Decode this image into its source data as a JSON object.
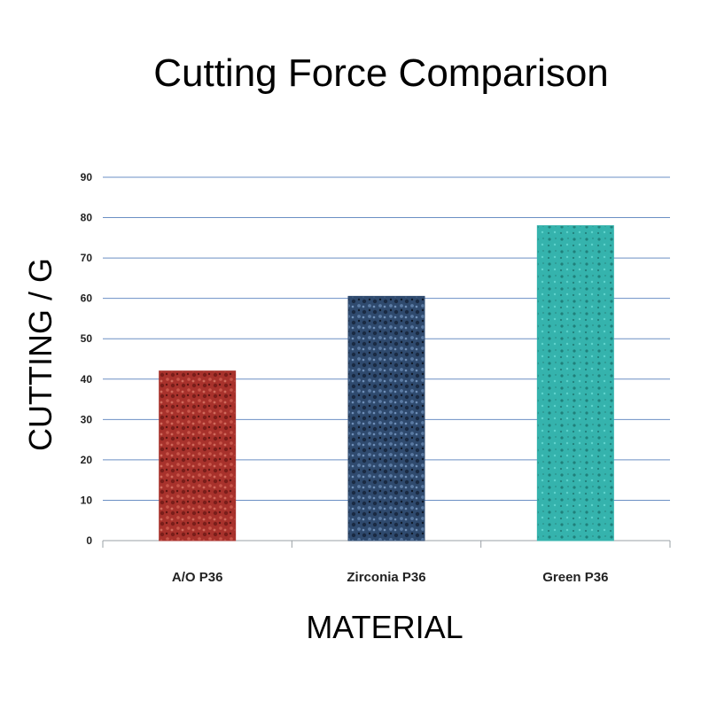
{
  "chart_data": {
    "type": "bar",
    "title": "Cutting Force Comparison",
    "xlabel": "MATERIAL",
    "ylabel": "CUTTING / G",
    "categories": [
      "A/O P36",
      "Zirconia P36",
      "Green P36"
    ],
    "values": [
      42,
      60.5,
      78
    ],
    "ylim": [
      0,
      90
    ],
    "yticks": [
      "0",
      "10",
      "20",
      "30",
      "40",
      "50",
      "60",
      "70",
      "80",
      "90"
    ],
    "grid": true,
    "colors": [
      "#a8322c",
      "#2f4a6e",
      "#35b3ad"
    ],
    "gridline_color": "#6b8fc4",
    "axis_color": "#9aa0a6"
  }
}
